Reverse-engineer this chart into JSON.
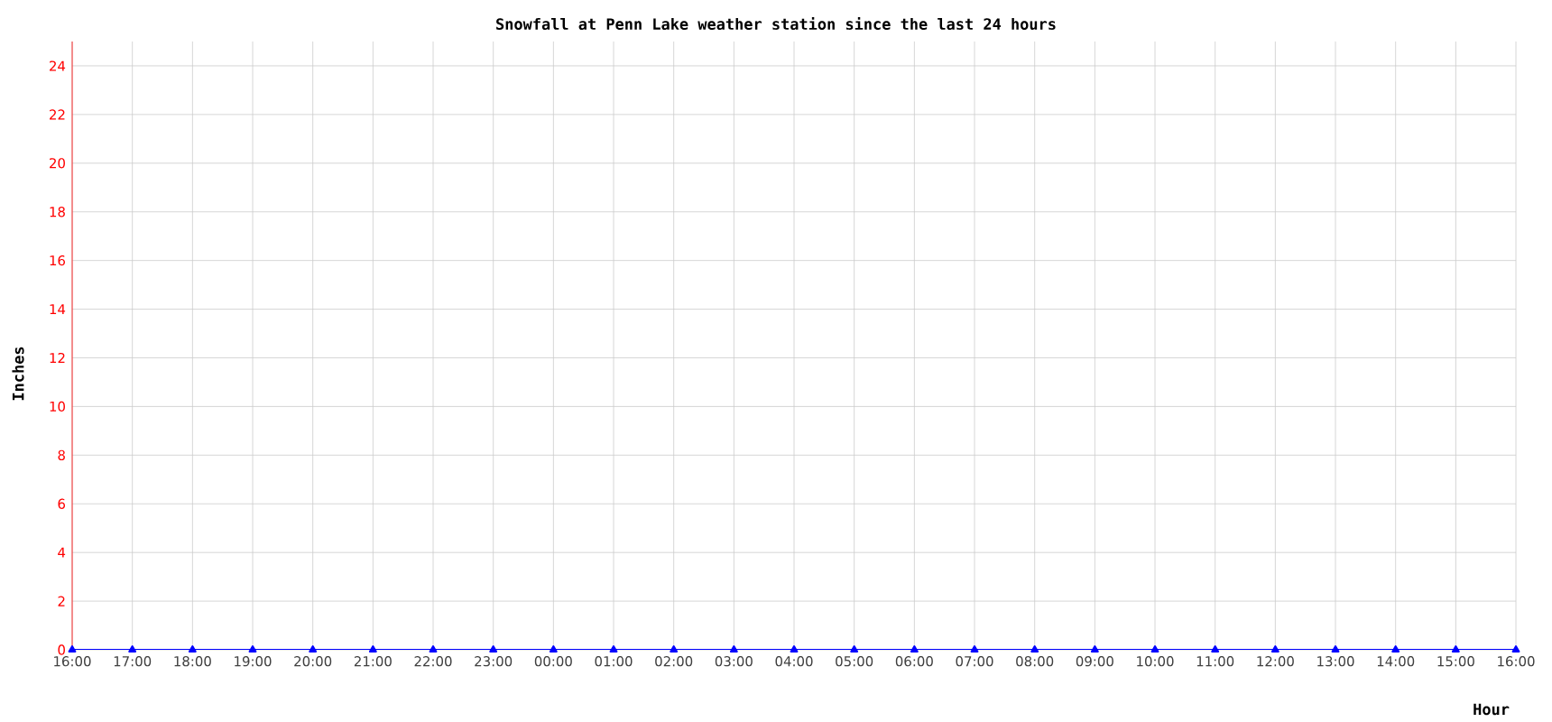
{
  "chart_data": {
    "type": "line",
    "title": "Snowfall at Penn Lake weather station since the last 24 hours",
    "xlabel": "Hour",
    "ylabel": "Inches",
    "categories": [
      "16:00",
      "17:00",
      "18:00",
      "19:00",
      "20:00",
      "21:00",
      "22:00",
      "23:00",
      "00:00",
      "01:00",
      "02:00",
      "03:00",
      "04:00",
      "05:00",
      "06:00",
      "07:00",
      "08:00",
      "09:00",
      "10:00",
      "11:00",
      "12:00",
      "13:00",
      "14:00",
      "15:00",
      "16:00"
    ],
    "series": [
      {
        "color": "#0000ff",
        "values": [
          0,
          0,
          0,
          0,
          0,
          0,
          0,
          0,
          0,
          0,
          0,
          0,
          0,
          0,
          0,
          0,
          0,
          0,
          0,
          0,
          0,
          0,
          0,
          0,
          0
        ]
      }
    ],
    "ylim": [
      0,
      25
    ],
    "yticks": [
      0,
      2,
      4,
      6,
      8,
      10,
      12,
      14,
      16,
      18,
      20,
      22,
      24
    ],
    "grid": true,
    "marker": "triangle",
    "line_style": "solid"
  }
}
